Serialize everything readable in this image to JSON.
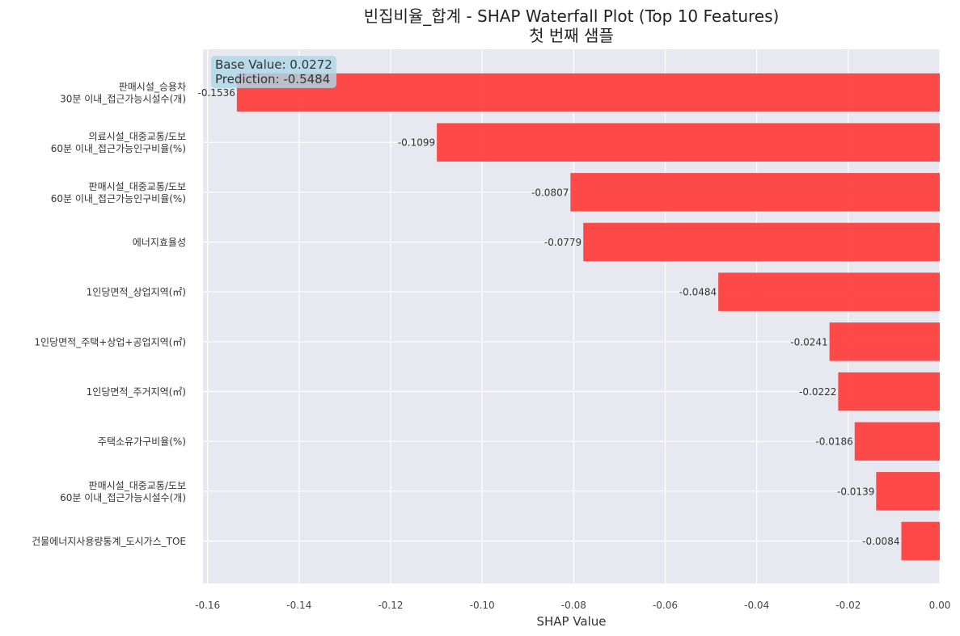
{
  "chart_data": {
    "type": "bar",
    "orientation": "horizontal",
    "title": "빈집비율_합계 - SHAP Waterfall Plot (Top 10 Features)",
    "subtitle": "첫 번째 샘플",
    "xlabel": "SHAP Value",
    "ylabel": "",
    "xlim": [
      -0.161,
      0.0
    ],
    "xticks": [
      "-0.16",
      "-0.14",
      "-0.12",
      "-0.10",
      "-0.08",
      "-0.06",
      "-0.04",
      "-0.02",
      "0.00"
    ],
    "grid": true,
    "bar_color": "#ff3b3b",
    "background_color": "#e8e8f0",
    "categories": [
      "판매시설_승용차\n30분 이내_접근가능시설수(개)",
      "의료시설_대중교통/도보\n60분 이내_접근가능인구비율(%)",
      "판매시설_대중교통/도보\n60분 이내_접근가능인구비율(%)",
      "에너지효율성",
      "1인당면적_상업지역(㎡)",
      "1인당면적_주택+상업+공업지역(㎡)",
      "1인당면적_주거지역(㎡)",
      "주택소유가구비율(%)",
      "판매시설_대중교통/도보\n60분 이내_접근가능시설수(개)",
      "건물에너지사용량통계_도시가스_TOE"
    ],
    "values": [
      -0.1536,
      -0.1099,
      -0.0807,
      -0.0779,
      -0.0484,
      -0.0241,
      -0.0222,
      -0.0186,
      -0.0139,
      -0.0084
    ],
    "value_labels": [
      "-0.1536",
      "-0.1099",
      "-0.0807",
      "-0.0779",
      "-0.0484",
      "-0.0241",
      "-0.0222",
      "-0.0186",
      "-0.0139",
      "-0.0084"
    ],
    "annotation": {
      "base_value": "Base Value: 0.0272",
      "prediction": "Prediction: -0.5484"
    }
  }
}
